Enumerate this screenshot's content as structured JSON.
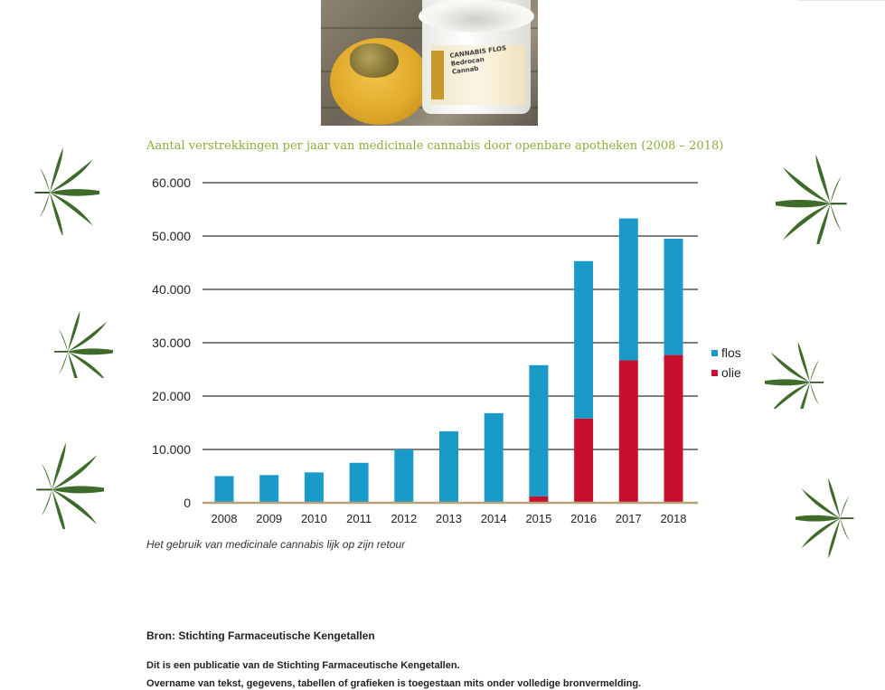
{
  "photo": {
    "jar_label_lines": [
      "CANNABIS FLOS",
      "Bedrocan",
      "Cannab"
    ]
  },
  "chart_data": {
    "type": "bar",
    "stacked": true,
    "title": "Aantal verstrekkingen per jaar van medicinale cannabis door openbare apotheken (2008 – 2018)",
    "xlabel": "",
    "ylabel": "",
    "categories": [
      "2008",
      "2009",
      "2010",
      "2011",
      "2012",
      "2013",
      "2014",
      "2015",
      "2016",
      "2017",
      "2018"
    ],
    "series": [
      {
        "name": "olie",
        "color": "#c8102e",
        "values": [
          0,
          0,
          0,
          0,
          0,
          0,
          0,
          1200,
          15800,
          26700,
          27700
        ]
      },
      {
        "name": "flos",
        "color": "#1a9ac9",
        "values": [
          5000,
          5200,
          5700,
          7500,
          10000,
          13400,
          16800,
          24600,
          29500,
          26600,
          21800
        ]
      }
    ],
    "ylim": [
      0,
      60000
    ],
    "yticks": [
      0,
      10000,
      20000,
      30000,
      40000,
      50000,
      60000
    ],
    "ytick_labels": [
      "0",
      "10.000",
      "20.000",
      "30.000",
      "40.000",
      "50.000",
      "60.000"
    ],
    "grid": true,
    "legend": {
      "placement": "right",
      "entries": [
        "flos",
        "olie"
      ]
    }
  },
  "caption": "Het gebruik van medicinale cannabis lijk op zijn retour",
  "source": "Bron: Stichting Farmaceutische Kengetallen",
  "notes": [
    "Dit is een publicatie van de Stichting Farmaceutische Kengetallen.",
    "Overname van tekst, gegevens, tabellen of grafieken is toegestaan mits onder volledige bronvermelding."
  ],
  "colors": {
    "title_green": "#8aae3a",
    "leaf_green": "#3e6b2a",
    "baseline": "#b7a37a",
    "gridline": "#555555"
  }
}
